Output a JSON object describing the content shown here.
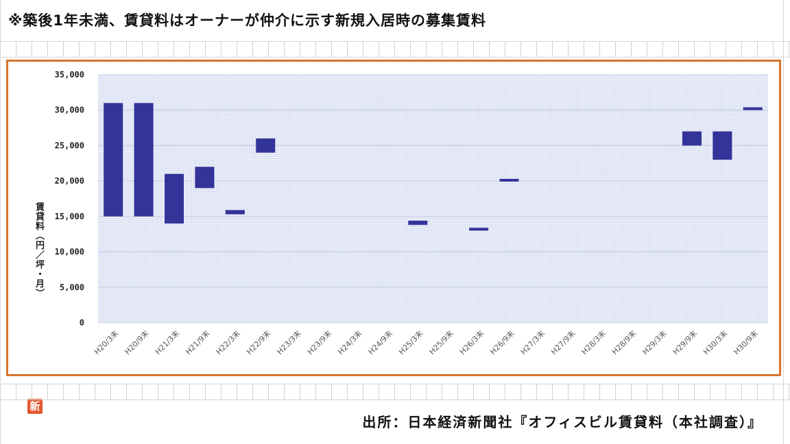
{
  "header": {
    "note": "※築後1年未満、賃貸料はオーナーが仲介に示す新規入居時の募集賃料"
  },
  "footer": {
    "source": "出所：日本経済新聞社『オフィスビル賃貸料（本社調査）』"
  },
  "logo": {
    "text": "新"
  },
  "colors": {
    "frame": "#d9732a",
    "bar": "#333399",
    "plot_dots": "#b8c4e6"
  },
  "chart_data": {
    "type": "bar",
    "subtype": "floating-range",
    "ylabel": "賃貸料（円／坪・月）",
    "xlabel": "",
    "ylim": [
      0,
      35000
    ],
    "yticks": [
      0,
      5000,
      10000,
      15000,
      20000,
      25000,
      30000,
      35000
    ],
    "ytick_labels": [
      "0",
      "5,000",
      "10,000",
      "15,000",
      "20,000",
      "25,000",
      "30,000",
      "35,000"
    ],
    "grid": true,
    "categories": [
      "H20/3末",
      "H20/9末",
      "H21/3末",
      "H21/9末",
      "H22/3末",
      "H22/9末",
      "H23/3末",
      "H23/9末",
      "H24/3末",
      "H24/9末",
      "H25/3末",
      "H25/9末",
      "H26/3末",
      "H26/9末",
      "H27/3末",
      "H27/9末",
      "H28/3末",
      "H28/9末",
      "H29/3末",
      "H29/9末",
      "H30/3末",
      "H30/9末"
    ],
    "ranges": [
      [
        15000,
        31000
      ],
      [
        15000,
        31000
      ],
      [
        14000,
        21000
      ],
      [
        19000,
        22000
      ],
      [
        15300,
        15900
      ],
      [
        24000,
        26000
      ],
      null,
      null,
      null,
      null,
      [
        13800,
        14400
      ],
      null,
      [
        13000,
        13400
      ],
      [
        20000,
        20300
      ],
      null,
      null,
      null,
      null,
      null,
      [
        25000,
        27000
      ],
      [
        23000,
        27000
      ],
      [
        30000,
        30400
      ]
    ]
  }
}
